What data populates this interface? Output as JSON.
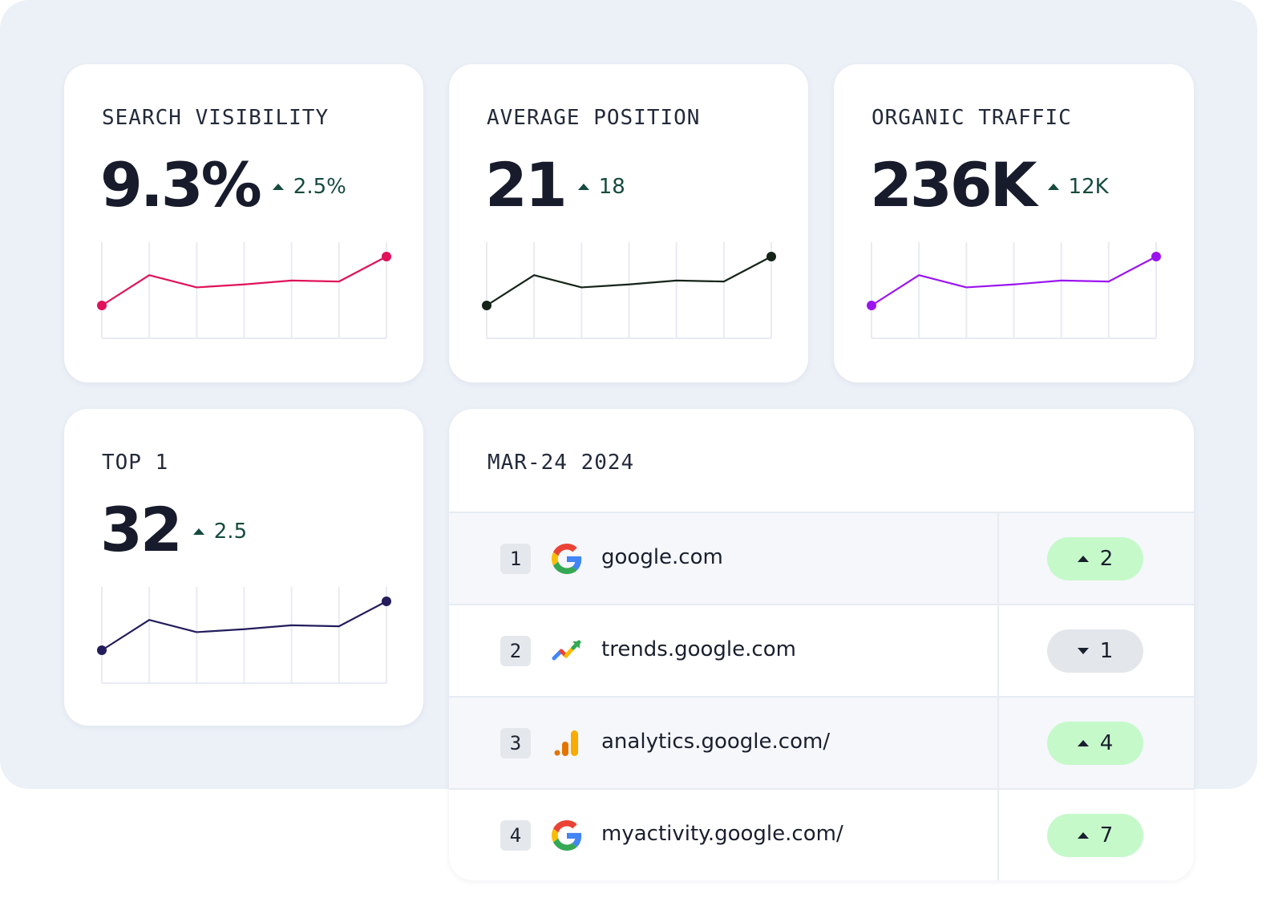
{
  "metrics": [
    {
      "title": "SEARCH VISIBILITY",
      "value": "9.3%",
      "delta": "2.5%",
      "color": "#e0125a",
      "chart_data": {
        "type": "line",
        "values": [
          0,
          0.62,
          0.37,
          0.43,
          0.51,
          0.49,
          1
        ]
      }
    },
    {
      "title": "AVERAGE POSITION",
      "value": "21",
      "delta": "18",
      "color": "#142418",
      "chart_data": {
        "type": "line",
        "values": [
          0,
          0.62,
          0.37,
          0.43,
          0.51,
          0.49,
          1
        ]
      }
    },
    {
      "title": "ORGANIC TRAFFIC",
      "value": "236K",
      "delta": "12K",
      "color": "#9b14f0",
      "chart_data": {
        "type": "line",
        "values": [
          0,
          0.62,
          0.37,
          0.43,
          0.51,
          0.49,
          1
        ]
      }
    },
    {
      "title": "TOP 1",
      "value": "32",
      "delta": "2.5",
      "color": "#231d5c",
      "chart_data": {
        "type": "line",
        "values": [
          0,
          0.62,
          0.37,
          0.43,
          0.51,
          0.49,
          1
        ]
      }
    }
  ],
  "table": {
    "date": "MAR-24 2024",
    "rows": [
      {
        "rank": "1",
        "icon": "google-icon",
        "domain": "google.com",
        "direction": "up",
        "change": "2"
      },
      {
        "rank": "2",
        "icon": "trends-icon",
        "domain": "trends.google.com",
        "direction": "down",
        "change": "1"
      },
      {
        "rank": "3",
        "icon": "analytics-icon",
        "domain": "analytics.google.com/",
        "direction": "up",
        "change": "4"
      },
      {
        "rank": "4",
        "icon": "google-icon",
        "domain": "myactivity.google.com/",
        "direction": "up",
        "change": "7"
      }
    ]
  }
}
